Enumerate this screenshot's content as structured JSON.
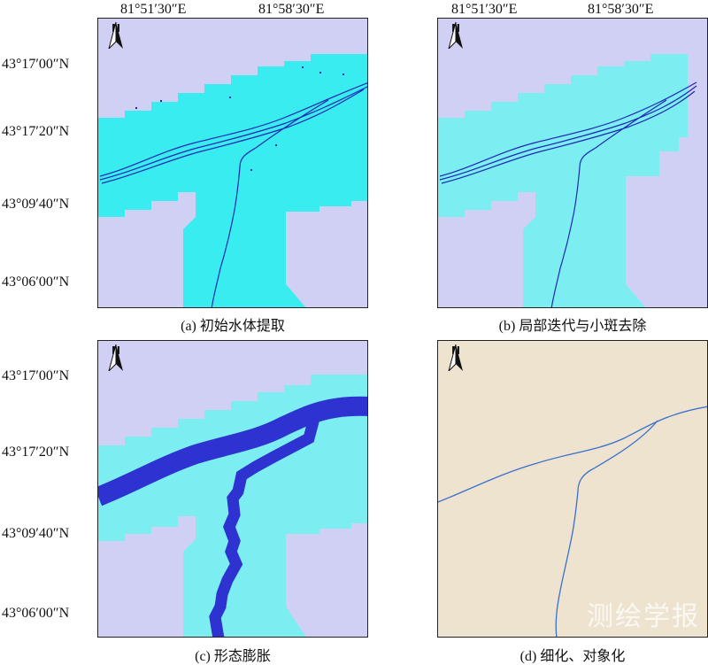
{
  "longitude_labels": [
    "81°51′30″E",
    "81°58′30″E",
    "81°51′30″E",
    "81°58′30″E"
  ],
  "latitude_labels_top": [
    "43°17′00″N",
    "43°17′20″N",
    "43°09′40″N",
    "43°06′00″N"
  ],
  "latitude_labels_bottom": [
    "43°17′00″N",
    "43°17′20″N",
    "43°09′40″N",
    "43°06′00″N"
  ],
  "north_arrow_letter": "N",
  "captions": {
    "a": "(a) 初始水体提取",
    "b": "(b) 局部迭代与小斑去除",
    "c": "(c) 形态膨胀",
    "d": "(d) 细化、对象化"
  },
  "colors": {
    "background_lavender": "#d0cff4",
    "buffer_cyan_a": "#38ecf0",
    "buffer_cyan_b": "#7ceef2",
    "water_blue": "#1d27b0",
    "water_dilated": "#2d32d0",
    "beige": "#ede3cf",
    "thin_river": "#3a6fd0"
  },
  "watermark": "测绘学报"
}
